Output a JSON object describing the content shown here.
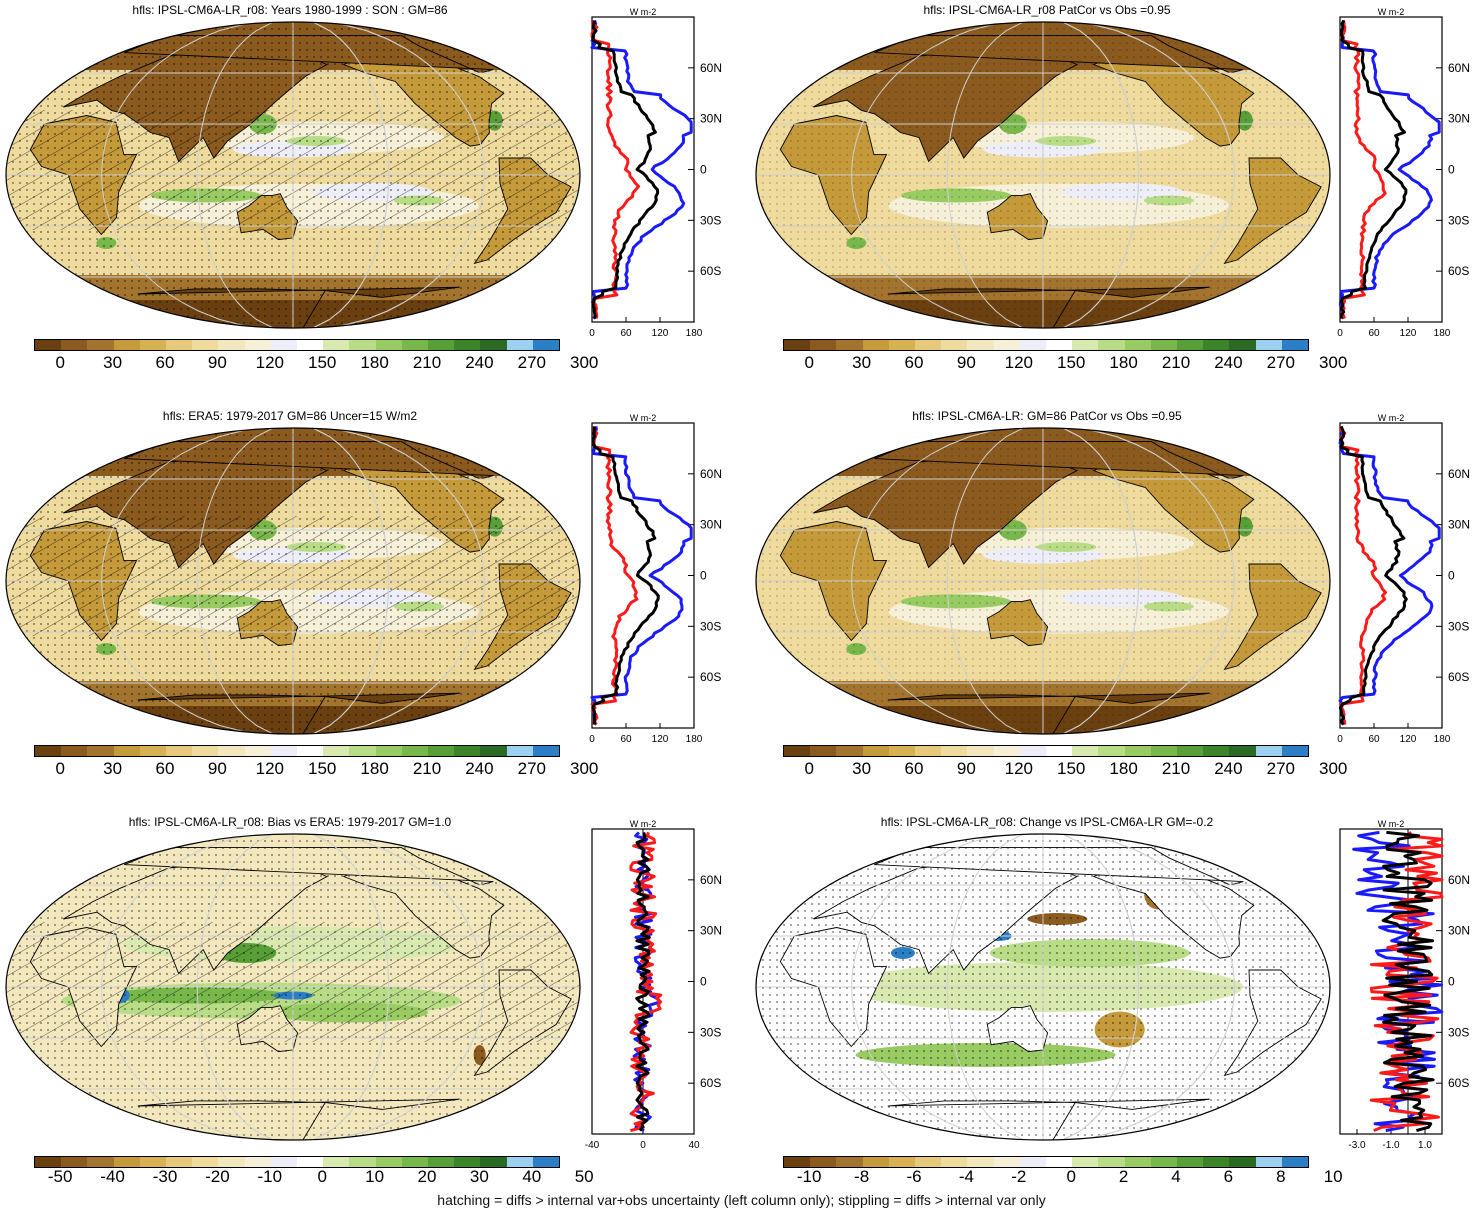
{
  "variable": "hfls",
  "panels": [
    {
      "id": "p1",
      "title": "hfls: IPSL-CM6A-LR_r08: Years 1980-1999 : SON : GM=86",
      "kind": "climatology",
      "colorbar": {
        "ticks": [
          "0",
          "30",
          "60",
          "90",
          "120",
          "150",
          "180",
          "210",
          "240",
          "270",
          "300"
        ],
        "colors": [
          "#6b4010",
          "#8a5a1e",
          "#a3742e",
          "#c59a3a",
          "#d7b254",
          "#e6c97a",
          "#eedb9d",
          "#f3e8bd",
          "#f7f0d8",
          "#eeeef8",
          "#ffffff",
          "#d9eab0",
          "#b9dc87",
          "#98cc62",
          "#78b84a",
          "#589f37",
          "#3c842a",
          "#2b6a22",
          "#9cd0f0",
          "#2c7fc4"
        ]
      },
      "zonal": {
        "unit": "W m-2",
        "yticks": [
          "60N",
          "30N",
          "0",
          "30S",
          "60S"
        ],
        "xticks": [
          "0",
          "60",
          "120",
          "180"
        ],
        "xlim": [
          0,
          180
        ]
      }
    },
    {
      "id": "p2",
      "title": "hfls: IPSL-CM6A-LR_r08 PatCor vs Obs =0.95",
      "kind": "climatology",
      "colorbar": {
        "ticks": [
          "0",
          "30",
          "60",
          "90",
          "120",
          "150",
          "180",
          "210",
          "240",
          "270",
          "300"
        ],
        "colors": [
          "#6b4010",
          "#8a5a1e",
          "#a3742e",
          "#c59a3a",
          "#d7b254",
          "#e6c97a",
          "#eedb9d",
          "#f3e8bd",
          "#f7f0d8",
          "#eeeef8",
          "#ffffff",
          "#d9eab0",
          "#b9dc87",
          "#98cc62",
          "#78b84a",
          "#589f37",
          "#3c842a",
          "#2b6a22",
          "#9cd0f0",
          "#2c7fc4"
        ]
      },
      "zonal": {
        "unit": "W m-2",
        "yticks": [
          "60N",
          "30N",
          "0",
          "30S",
          "60S"
        ],
        "xticks": [
          "0",
          "60",
          "120",
          "180"
        ],
        "xlim": [
          0,
          180
        ]
      }
    },
    {
      "id": "p3",
      "title": "hfls: ERA5: 1979-2017 GM=86 Uncer=15 W/m2",
      "kind": "climatology",
      "colorbar": {
        "ticks": [
          "0",
          "30",
          "60",
          "90",
          "120",
          "150",
          "180",
          "210",
          "240",
          "270",
          "300"
        ],
        "colors": [
          "#6b4010",
          "#8a5a1e",
          "#a3742e",
          "#c59a3a",
          "#d7b254",
          "#e6c97a",
          "#eedb9d",
          "#f3e8bd",
          "#f7f0d8",
          "#eeeef8",
          "#ffffff",
          "#d9eab0",
          "#b9dc87",
          "#98cc62",
          "#78b84a",
          "#589f37",
          "#3c842a",
          "#2b6a22",
          "#9cd0f0",
          "#2c7fc4"
        ]
      },
      "zonal": {
        "unit": "W m-2",
        "yticks": [
          "60N",
          "30N",
          "0",
          "30S",
          "60S"
        ],
        "xticks": [
          "0",
          "60",
          "120",
          "180"
        ],
        "xlim": [
          0,
          180
        ]
      }
    },
    {
      "id": "p4",
      "title": "hfls: IPSL-CM6A-LR: GM=86 PatCor vs Obs =0.95",
      "kind": "climatology",
      "colorbar": {
        "ticks": [
          "0",
          "30",
          "60",
          "90",
          "120",
          "150",
          "180",
          "210",
          "240",
          "270",
          "300"
        ],
        "colors": [
          "#6b4010",
          "#8a5a1e",
          "#a3742e",
          "#c59a3a",
          "#d7b254",
          "#e6c97a",
          "#eedb9d",
          "#f3e8bd",
          "#f7f0d8",
          "#eeeef8",
          "#ffffff",
          "#d9eab0",
          "#b9dc87",
          "#98cc62",
          "#78b84a",
          "#589f37",
          "#3c842a",
          "#2b6a22",
          "#9cd0f0",
          "#2c7fc4"
        ]
      },
      "zonal": {
        "unit": "W m-2",
        "yticks": [
          "60N",
          "30N",
          "0",
          "30S",
          "60S"
        ],
        "xticks": [
          "0",
          "60",
          "120",
          "180"
        ],
        "xlim": [
          0,
          180
        ]
      }
    },
    {
      "id": "p5",
      "title": "hfls: IPSL-CM6A-LR_r08: Bias vs ERA5: 1979-2017  GM=1.0",
      "kind": "difference",
      "colorbar": {
        "ticks": [
          "-50",
          "-40",
          "-30",
          "-20",
          "-10",
          "0",
          "10",
          "20",
          "30",
          "40",
          "50"
        ],
        "colors": [
          "#6b4010",
          "#8a5a1e",
          "#a3742e",
          "#c59a3a",
          "#d7b254",
          "#e6c97a",
          "#eedb9d",
          "#f3e8bd",
          "#f7f0d8",
          "#eeeef8",
          "#ffffff",
          "#d9eab0",
          "#b9dc87",
          "#98cc62",
          "#78b84a",
          "#589f37",
          "#3c842a",
          "#2b6a22",
          "#9cd0f0",
          "#2c7fc4"
        ]
      },
      "zonal": {
        "unit": "W m-2",
        "yticks": [
          "60N",
          "30N",
          "0",
          "30S",
          "60S"
        ],
        "xticks": [
          "-40",
          "0",
          "40"
        ],
        "xlim": [
          -40,
          40
        ]
      }
    },
    {
      "id": "p6",
      "title": "hfls: IPSL-CM6A-LR_r08: Change vs IPSL-CM6A-LR GM=-0.2",
      "kind": "difference",
      "colorbar": {
        "ticks": [
          "-10",
          "-8",
          "-6",
          "-4",
          "-2",
          "0",
          "2",
          "4",
          "6",
          "8",
          "10"
        ],
        "colors": [
          "#6b4010",
          "#8a5a1e",
          "#a3742e",
          "#c59a3a",
          "#d7b254",
          "#e6c97a",
          "#eedb9d",
          "#f3e8bd",
          "#f7f0d8",
          "#eeeef8",
          "#ffffff",
          "#d9eab0",
          "#b9dc87",
          "#98cc62",
          "#78b84a",
          "#589f37",
          "#3c842a",
          "#2b6a22",
          "#9cd0f0",
          "#2c7fc4"
        ]
      },
      "zonal": {
        "unit": "W m-2",
        "yticks": [
          "60N",
          "30N",
          "0",
          "30S",
          "60S"
        ],
        "xticks": [
          "-3.0",
          "-1.0",
          "1.0"
        ],
        "xlim": [
          -4.0,
          2.0
        ]
      }
    }
  ],
  "footer": "hatching = diffs > internal var+obs uncertainty (left column only); stippling = diffs > internal var only",
  "line_colors": {
    "red": "#ff1a1a",
    "blue": "#1a1aff",
    "black": "#000000"
  }
}
